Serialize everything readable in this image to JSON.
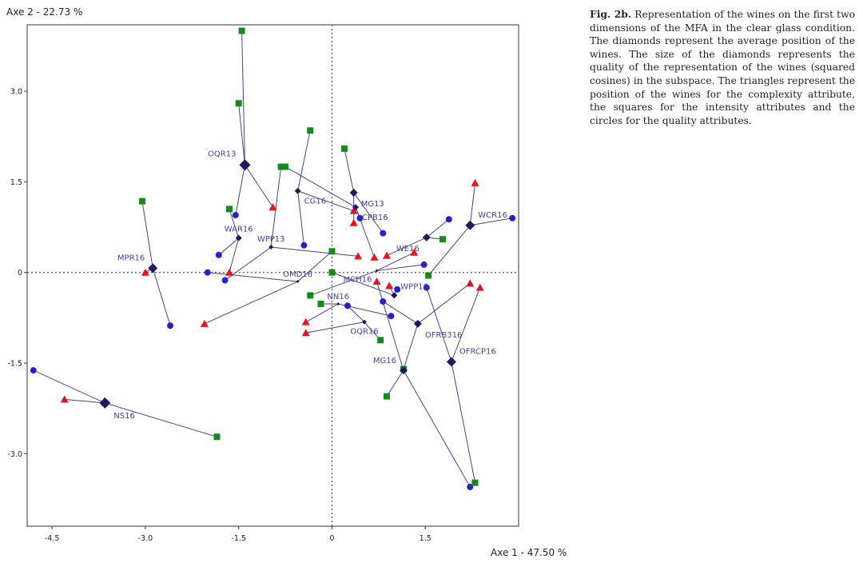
{
  "chart_data": {
    "type": "scatter",
    "title": "",
    "xlabel": "Axe 1 - 47.50 %",
    "ylabel": "Axe 2 - 22.73 %",
    "xlim": [
      -4.9,
      3.0
    ],
    "ylim": [
      -4.2,
      4.1
    ],
    "xticks": [
      -4.5,
      -3.0,
      -1.5,
      0,
      1.5
    ],
    "xtick_labels": [
      "-4.5",
      "-3.0",
      "-1.5",
      "0",
      "1.5"
    ],
    "yticks": [
      3.0,
      1.5,
      0,
      -1.5,
      -3.0
    ],
    "ytick_labels": [
      "3.0",
      "1.5",
      "0",
      "-1.5",
      "-3.0"
    ],
    "colors": {
      "wine": "#1f1a5e",
      "complexity": "#e8141b",
      "intensity": "#138a1a",
      "quality": "#2222cc",
      "line": "#4b3f93"
    },
    "wines": [
      {
        "name": "NS16",
        "x": -3.65,
        "y": -2.16,
        "size": 7,
        "label_dx": 1,
        "label_dy": -1,
        "complexity": [
          [
            -4.3,
            -2.1
          ]
        ],
        "intensity": [
          [
            -1.85,
            -2.72
          ]
        ],
        "quality": [
          [
            -4.8,
            -1.62
          ]
        ]
      },
      {
        "name": "MPR16",
        "x": -2.88,
        "y": 0.07,
        "size": 6,
        "label_dx": -1,
        "label_dy": 1,
        "complexity": [
          [
            -3.0,
            0.0
          ]
        ],
        "intensity": [
          [
            -3.05,
            1.18
          ]
        ],
        "quality": [
          [
            -2.6,
            -0.88
          ]
        ]
      },
      {
        "name": "OQR13",
        "x": -1.4,
        "y": 1.78,
        "size": 7,
        "label_dx": -1,
        "label_dy": 1,
        "complexity": [
          [
            -0.95,
            1.08
          ]
        ],
        "intensity": [
          [
            -1.45,
            4.0
          ],
          [
            -1.5,
            2.8
          ]
        ],
        "quality": [
          [
            -1.55,
            0.95
          ]
        ]
      },
      {
        "name": "WAR16",
        "x": -1.5,
        "y": 0.57,
        "size": 4,
        "label_dx": 0,
        "label_dy": 1,
        "complexity": [
          [
            -1.65,
            0.0
          ]
        ],
        "intensity": [
          [
            -1.65,
            1.05
          ]
        ],
        "quality": [
          [
            -1.82,
            0.29
          ]
        ]
      },
      {
        "name": "WPP13",
        "x": -0.98,
        "y": 0.42,
        "size": 3,
        "label_dx": 0,
        "label_dy": 1,
        "complexity": [
          [
            0.42,
            0.27
          ]
        ],
        "intensity": [
          [
            -0.82,
            1.75
          ]
        ],
        "quality": [
          [
            -1.72,
            -0.13
          ]
        ]
      },
      {
        "name": "OMD16",
        "x": -0.55,
        "y": -0.15,
        "size": 2,
        "label_dx": 0,
        "label_dy": 1,
        "complexity": [
          [
            -2.05,
            -0.85
          ]
        ],
        "intensity": [
          [
            0.0,
            0.35
          ]
        ],
        "quality": [
          [
            -2.0,
            0.0
          ]
        ]
      },
      {
        "name": "CG16",
        "x": -0.55,
        "y": 1.35,
        "size": 4,
        "label_dx": 1,
        "label_dy": -1,
        "complexity": [
          [
            0.35,
            1.02
          ]
        ],
        "intensity": [
          [
            -0.35,
            2.35
          ]
        ],
        "quality": [
          [
            -0.45,
            0.45
          ]
        ]
      },
      {
        "name": "MG13",
        "x": 0.35,
        "y": 1.32,
        "size": 5,
        "label_dx": 1,
        "label_dy": -1,
        "complexity": [
          [
            0.35,
            0.82
          ]
        ],
        "intensity": [
          [
            0.2,
            2.05
          ]
        ],
        "quality": [
          [
            0.82,
            0.65
          ]
        ]
      },
      {
        "name": "CPB16",
        "x": 0.38,
        "y": 1.08,
        "size": 4,
        "label_dx": 1,
        "label_dy": -1,
        "complexity": [
          [
            0.68,
            0.25
          ]
        ],
        "intensity": [
          [
            -0.75,
            1.75
          ]
        ],
        "quality": [
          [
            0.45,
            0.9
          ]
        ]
      },
      {
        "name": "WE16",
        "x": 1.52,
        "y": 0.58,
        "size": 5,
        "label_dx": -1,
        "label_dy": -1,
        "complexity": [
          [
            0.88,
            0.28
          ]
        ],
        "intensity": [
          [
            1.78,
            0.55
          ]
        ],
        "quality": [
          [
            1.88,
            0.88
          ]
        ]
      },
      {
        "name": "WCR16",
        "x": 2.22,
        "y": 0.78,
        "size": 6,
        "label_dx": 1,
        "label_dy": 1,
        "complexity": [
          [
            2.3,
            1.48
          ]
        ],
        "intensity": [
          [
            1.55,
            -0.05
          ]
        ],
        "quality": [
          [
            2.9,
            0.9
          ]
        ]
      },
      {
        "name": "MCH16",
        "x": 0.72,
        "y": 0.03,
        "size": 2,
        "label_dx": -1,
        "label_dy": -1,
        "complexity": [
          [
            1.32,
            0.33
          ]
        ],
        "intensity": [
          [
            -0.35,
            -0.38
          ]
        ],
        "quality": [
          [
            1.48,
            0.13
          ]
        ]
      },
      {
        "name": "WPP16",
        "x": 1.0,
        "y": -0.38,
        "size": 4,
        "label_dx": 1,
        "label_dy": 1,
        "complexity": [
          [
            0.92,
            -0.22
          ]
        ],
        "intensity": [
          [
            0.0,
            0.0
          ]
        ],
        "quality": [
          [
            1.05,
            -0.28
          ]
        ]
      },
      {
        "name": "OQR16",
        "x": 0.52,
        "y": -0.82,
        "size": 3,
        "label_dx": 0,
        "label_dy": -1,
        "complexity": [
          [
            -0.42,
            -1.0
          ]
        ],
        "intensity": [
          [
            0.78,
            -1.12
          ]
        ],
        "quality": [
          [
            0.25,
            -0.55
          ]
        ]
      },
      {
        "name": "NN16",
        "x": 0.1,
        "y": -0.52,
        "size": 2,
        "label_dx": 0,
        "label_dy": 1,
        "complexity": [
          [
            -0.42,
            -0.82
          ]
        ],
        "intensity": [
          [
            -0.18,
            -0.52
          ]
        ],
        "quality": [
          [
            0.95,
            -0.72
          ]
        ]
      },
      {
        "name": "OFRB316",
        "x": 1.38,
        "y": -0.85,
        "size": 5,
        "label_dx": 1,
        "label_dy": -1,
        "complexity": [
          [
            2.22,
            -0.18
          ]
        ],
        "intensity": [
          [
            1.15,
            -1.6
          ]
        ],
        "quality": [
          [
            0.82,
            -0.48
          ]
        ]
      },
      {
        "name": "MG16",
        "x": 1.15,
        "y": -1.62,
        "size": 5,
        "label_dx": -1,
        "label_dy": 1,
        "complexity": [
          [
            0.72,
            -0.15
          ]
        ],
        "intensity": [
          [
            0.88,
            -2.05
          ]
        ],
        "quality": [
          [
            2.22,
            -3.55
          ]
        ]
      },
      {
        "name": "OFRCP16",
        "x": 1.92,
        "y": -1.48,
        "size": 6,
        "label_dx": 1,
        "label_dy": 1,
        "complexity": [
          [
            2.38,
            -0.25
          ]
        ],
        "intensity": [
          [
            2.3,
            -3.48
          ]
        ],
        "quality": [
          [
            1.52,
            -0.25
          ]
        ]
      }
    ]
  },
  "caption": {
    "label": "Fig. 2b.",
    "text": "Representation of the wines on the first two dimensions of the MFA in the clear glass condition. The diamonds represent the average position of the wines. The size of the diamonds represents the quality of the representation of the wines (squared cosines) in the subspace. The triangles represent the position of the wines for the complexity attribute, the squares for the intensity attributes and the circles for the quality attributes."
  }
}
